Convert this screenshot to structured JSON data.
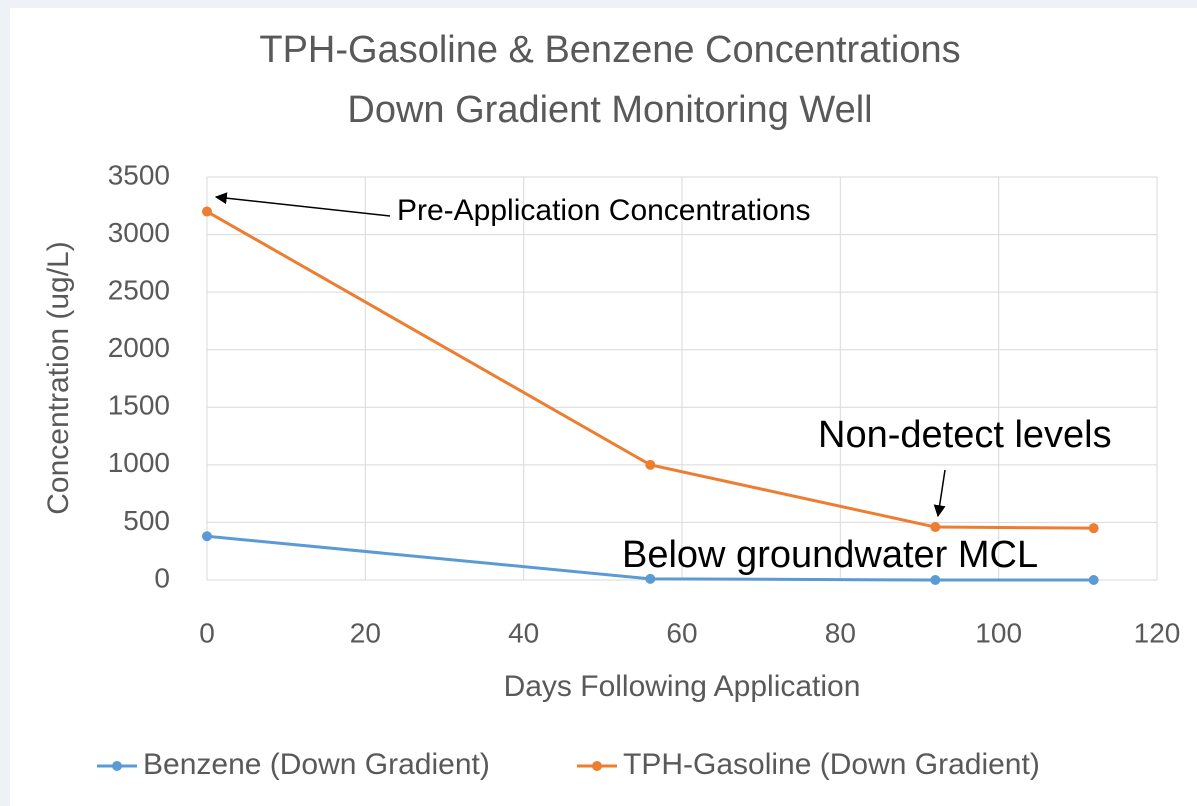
{
  "chart_data": {
    "type": "line",
    "title": [
      "TPH-Gasoline & Benzene Concentrations",
      "Down Gradient Monitoring Well"
    ],
    "x_label": "Days Following Application",
    "y_label": "Concentration (ug/L)",
    "x": [
      0,
      56,
      92,
      112
    ],
    "series": [
      {
        "name": "Benzene (Down Gradient)",
        "color": "#5b9bd5",
        "values": [
          380,
          10,
          0,
          0
        ]
      },
      {
        "name": "TPH-Gasoline (Down Gradient)",
        "color": "#ed7d31",
        "values": [
          3200,
          1000,
          460,
          450
        ]
      }
    ],
    "xlim": [
      0,
      120
    ],
    "xticks": [
      0,
      20,
      40,
      60,
      80,
      100,
      120
    ],
    "ylim": [
      0,
      3500
    ],
    "yticks": [
      0,
      500,
      1000,
      1500,
      2000,
      2500,
      3000,
      3500
    ],
    "grid": true,
    "legend": "bottom",
    "annotations": [
      {
        "text": "Pre-Application Concentrations"
      },
      {
        "text": "Non-detect levels"
      },
      {
        "text": "Below groundwater MCL"
      }
    ]
  }
}
